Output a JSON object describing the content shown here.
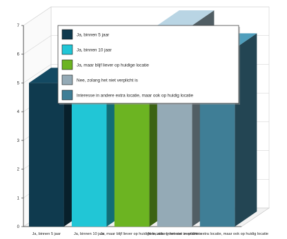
{
  "chart_data": {
    "type": "bar",
    "categories": [
      "Ja, binnen 5 jaar",
      "Ja, binnen 10 jaar",
      "Ja, maar blijf liever op huidige locatie",
      "Nee, zolang het niet verplicht is",
      "Interesse in andere extra locatie, maar ook op huidig locatie"
    ],
    "series": [
      {
        "name": "Ja, binnen 5 jaar",
        "values": [
          5,
          null,
          null,
          null,
          null
        ],
        "color": "#0f3a4e"
      },
      {
        "name": "Ja, binnen 10 jaar",
        "values": [
          null,
          4.7,
          null,
          null,
          null
        ],
        "color": "#21c6d6"
      },
      {
        "name": "Ja, maar blijf liever op huidige locatie",
        "values": [
          null,
          null,
          6.2,
          null,
          null
        ],
        "color": "#6cb422"
      },
      {
        "name": "Nee, zolang het niet verplicht is",
        "values": [
          null,
          null,
          null,
          7,
          null
        ],
        "color": "#94aab6"
      },
      {
        "name": "Interesse in andere extra locatie, maar ook op huidig locatie",
        "values": [
          null,
          null,
          null,
          null,
          6.2
        ],
        "color": "#3f7e96"
      }
    ],
    "yticks": [
      0,
      1,
      2,
      3,
      4,
      5,
      6,
      7
    ],
    "ylim": [
      0,
      7
    ],
    "legend": "top-center overlay",
    "grid": true,
    "style": "3d-bar"
  }
}
